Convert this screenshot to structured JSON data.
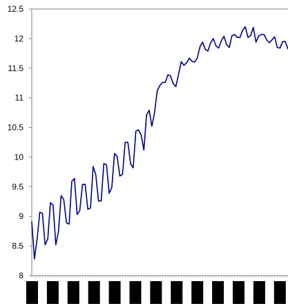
{
  "chart_data": {
    "type": "line",
    "title": "",
    "xlabel": "",
    "ylabel": "",
    "ylim": [
      8,
      12.5
    ],
    "yticks": [
      "8",
      "8.5",
      "9",
      "9.5",
      "10",
      "10.5",
      "11",
      "11.5",
      "12",
      "12.5"
    ],
    "grid": false,
    "legend": "none",
    "colors": {
      "line": "#000080",
      "axis": "#808080",
      "x_blocks": "#000000"
    },
    "x_block_count": 13,
    "series": [
      {
        "values": [
          8.91,
          8.28,
          8.62,
          9.07,
          9.05,
          8.52,
          8.62,
          9.23,
          9.19,
          8.52,
          8.74,
          9.35,
          9.28,
          8.89,
          8.87,
          9.59,
          9.64,
          9.03,
          9.1,
          9.54,
          9.54,
          9.12,
          9.14,
          9.84,
          9.7,
          9.26,
          9.26,
          9.89,
          9.87,
          9.39,
          9.49,
          10.06,
          10.01,
          9.68,
          9.71,
          10.25,
          10.25,
          9.89,
          9.82,
          10.44,
          10.46,
          10.37,
          10.12,
          10.71,
          10.79,
          10.52,
          10.75,
          11.12,
          11.21,
          11.26,
          11.26,
          11.39,
          11.37,
          11.24,
          11.19,
          11.4,
          11.61,
          11.55,
          11.59,
          11.67,
          11.62,
          11.6,
          11.67,
          11.86,
          11.94,
          11.82,
          11.79,
          11.93,
          12.0,
          11.88,
          11.84,
          11.96,
          12.04,
          11.9,
          11.85,
          12.05,
          12.07,
          12.02,
          12.02,
          12.14,
          12.2,
          12.02,
          12.05,
          12.19,
          11.94,
          12.04,
          12.07,
          12.07,
          11.98,
          11.93,
          11.98,
          12.03,
          11.85,
          11.84,
          11.95,
          11.95,
          11.82
        ]
      }
    ]
  }
}
